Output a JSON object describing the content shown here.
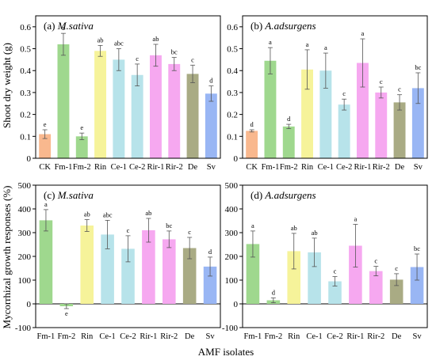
{
  "figure": {
    "ylabel_top": "Shoot dry weight (g)",
    "ylabel_bottom": "Mycorrhizal growth responses (%)",
    "xlabel": "AMF isolates"
  },
  "colors": {
    "CK": "#f9b88e",
    "Fm-1": "#9fd88e",
    "Fm-2": "#9fd88e",
    "Rin": "#f6f39a",
    "Ce-1": "#b7e3ea",
    "Ce-2": "#b7e3ea",
    "Rir-1": "#f6a8f0",
    "Rir-2": "#f6a8f0",
    "De": "#a9ab84",
    "Sv": "#99b6f4",
    "axis": "#000000",
    "error": "#555555"
  },
  "chart_data": [
    {
      "type": "bar",
      "panel": "(a)",
      "title": "M.sativa",
      "categories": [
        "CK",
        "Fm-1",
        "Fm-2",
        "Rin",
        "Ce-1",
        "Ce-2",
        "Rir-1",
        "Rir-2",
        "De",
        "Sv"
      ],
      "values": [
        0.11,
        0.52,
        0.1,
        0.49,
        0.45,
        0.38,
        0.47,
        0.43,
        0.385,
        0.295
      ],
      "errors": [
        0.02,
        0.05,
        0.015,
        0.025,
        0.05,
        0.05,
        0.05,
        0.03,
        0.04,
        0.035
      ],
      "letters": [
        "e",
        "a",
        "e",
        "ab",
        "abc",
        "c",
        "ab",
        "bc",
        "c",
        "d"
      ],
      "yticks": [
        "0",
        "0.1",
        "0.2",
        "0.3",
        "0.4",
        "0.5",
        "0.6"
      ],
      "ylim": [
        0,
        0.65
      ],
      "ylabel": "Shoot dry weight (g)"
    },
    {
      "type": "bar",
      "panel": "(b)",
      "title": "A.adsurgens",
      "categories": [
        "CK",
        "Fm-1",
        "Fm-2",
        "Rin",
        "Ce-1",
        "Ce-2",
        "Rir-1",
        "Rir-2",
        "De",
        "Sv"
      ],
      "values": [
        0.125,
        0.445,
        0.145,
        0.405,
        0.4,
        0.245,
        0.435,
        0.3,
        0.255,
        0.32
      ],
      "errors": [
        0.005,
        0.06,
        0.01,
        0.09,
        0.08,
        0.025,
        0.11,
        0.025,
        0.035,
        0.07
      ],
      "letters": [
        "d",
        "a",
        "d",
        "a",
        "a",
        "c",
        "a",
        "c",
        "c",
        "bc"
      ],
      "yticks": [
        "0",
        "0.1",
        "0.2",
        "0.3",
        "0.4",
        "0.5",
        "0.6"
      ],
      "ylim": [
        0,
        0.65
      ],
      "ylabel": ""
    },
    {
      "type": "bar",
      "panel": "(c)",
      "title": "M.sativa",
      "categories": [
        "Fm-1",
        "Fm-2",
        "Rin",
        "Ce-1",
        "Ce-2",
        "Rir-1",
        "Rir-2",
        "De",
        "Sv"
      ],
      "values": [
        352,
        -10,
        330,
        292,
        232,
        310,
        272,
        235,
        157
      ],
      "errors": [
        45,
        10,
        25,
        60,
        55,
        50,
        35,
        45,
        40
      ],
      "letters": [
        "a",
        "e",
        "ab",
        "abc",
        "c",
        "ab",
        "bc",
        "c",
        "d"
      ],
      "yticks": [
        "-100",
        "0",
        "100",
        "200",
        "300",
        "400",
        "500"
      ],
      "ylim": [
        -100,
        500
      ],
      "ylabel": "Mycorrhizal growth responses (%)"
    },
    {
      "type": "bar",
      "panel": "(d)",
      "title": "A.adsurgens",
      "categories": [
        "Fm-1",
        "Fm-2",
        "Rin",
        "Ce-1",
        "Ce-2",
        "Rir-1",
        "Rir-2",
        "De",
        "Sv"
      ],
      "values": [
        252,
        15,
        222,
        217,
        95,
        245,
        138,
        102,
        155
      ],
      "errors": [
        55,
        10,
        75,
        60,
        20,
        90,
        20,
        25,
        55
      ],
      "letters": [
        "a",
        "d",
        "ab",
        "ab",
        "c",
        "a",
        "c",
        "c",
        "bc"
      ],
      "yticks": [
        "-100",
        "0",
        "100",
        "200",
        "300",
        "400",
        "500"
      ],
      "ylim": [
        -100,
        500
      ],
      "ylabel": ""
    }
  ]
}
